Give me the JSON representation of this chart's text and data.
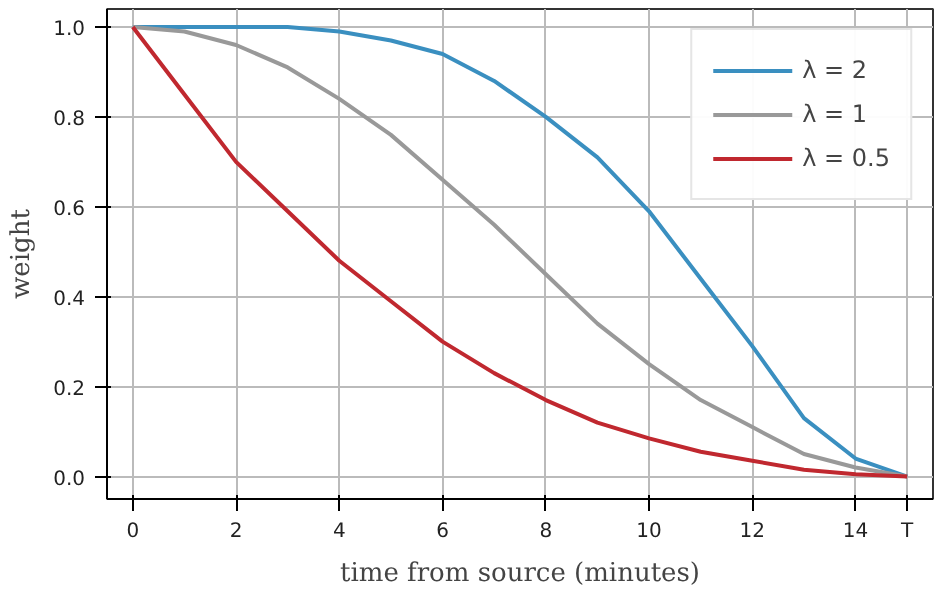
{
  "chart_data": {
    "type": "line",
    "xlabel": "time from source (minutes)",
    "ylabel": "weight",
    "x": [
      0,
      1,
      2,
      3,
      4,
      5,
      6,
      7,
      8,
      9,
      10,
      11,
      12,
      13,
      14,
      15
    ],
    "series": [
      {
        "name": "λ = 2",
        "color": "#3a8fc0",
        "values": [
          1.0,
          1.0,
          1.0,
          1.0,
          0.99,
          0.97,
          0.94,
          0.88,
          0.8,
          0.71,
          0.59,
          0.44,
          0.29,
          0.13,
          0.04,
          0.0
        ]
      },
      {
        "name": "λ = 1",
        "color": "#999999",
        "values": [
          1.0,
          0.99,
          0.96,
          0.91,
          0.84,
          0.76,
          0.66,
          0.56,
          0.45,
          0.34,
          0.25,
          0.17,
          0.11,
          0.05,
          0.02,
          0.0
        ]
      },
      {
        "name": "λ = 0.5",
        "color": "#c0282f",
        "values": [
          1.0,
          0.85,
          0.7,
          0.59,
          0.48,
          0.39,
          0.3,
          0.23,
          0.17,
          0.12,
          0.085,
          0.055,
          0.035,
          0.015,
          0.005,
          0.0
        ]
      }
    ],
    "xlim": [
      -0.5,
      15.5
    ],
    "ylim": [
      -0.05,
      1.04
    ],
    "xticks": [
      0,
      2,
      4,
      6,
      8,
      10,
      12,
      14,
      {
        "value": 15,
        "label": "T"
      }
    ],
    "yticks": [
      {
        "value": 0,
        "label": "0.0"
      },
      0.2,
      0.4,
      0.6,
      0.8,
      {
        "value": 1,
        "label": "1.0"
      }
    ],
    "grid": true,
    "legend": "top right",
    "marker": "none",
    "line_style": "solid"
  }
}
